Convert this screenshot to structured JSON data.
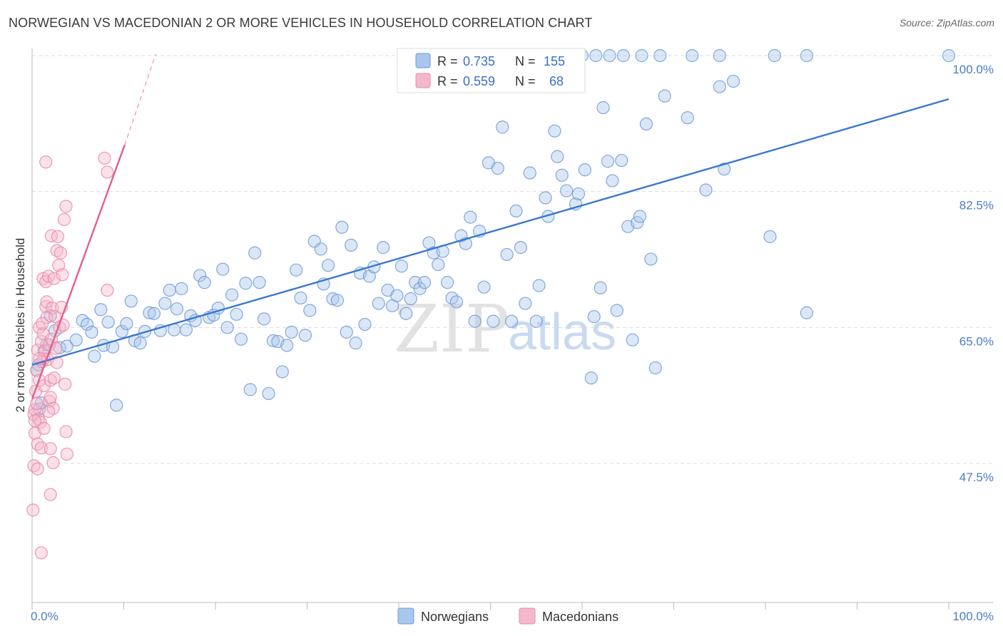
{
  "title": "NORWEGIAN VS MACEDONIAN 2 OR MORE VEHICLES IN HOUSEHOLD CORRELATION CHART",
  "source": "Source: ZipAtlas.com",
  "watermark": {
    "zip": "ZIP",
    "atlas": "atlas"
  },
  "colors": {
    "norwegian_fill": "#a9c6ec",
    "norwegian_stroke": "#6f9ad6",
    "norwegian_line": "#3a78cf",
    "macedonian_fill": "#f5b8cb",
    "macedonian_stroke": "#e68aa8",
    "macedonian_line": "#e0608e",
    "grid": "#dddddd"
  },
  "legend": {
    "rows": [
      {
        "r_label": "R = ",
        "r_value": "0.735",
        "n_label": "N = ",
        "n_value": "155"
      },
      {
        "r_label": "R = ",
        "r_value": "0.559",
        "n_label": "N = ",
        "n_value": "68"
      }
    ]
  },
  "chart_data": {
    "type": "scatter",
    "title": "NORWEGIAN VS MACEDONIAN 2 OR MORE VEHICLES IN HOUSEHOLD CORRELATION CHART",
    "xlabel": "",
    "ylabel": "2 or more Vehicles in Household",
    "xlim": [
      0,
      100
    ],
    "ylim": [
      31.8,
      103.5
    ],
    "x_tick_labels": [
      "0.0%",
      "100.0%"
    ],
    "y_ticks": [
      47.5,
      65.0,
      82.5,
      100.0
    ],
    "y_tick_labels": [
      "47.5%",
      "65.0%",
      "82.5%",
      "100.0%"
    ],
    "legend_position": "top-center",
    "series": [
      {
        "name": "Norwegians",
        "r": 0.735,
        "n": 155,
        "trend": {
          "x0": 0,
          "y0": 60.2,
          "x1": 100,
          "y1": 94.4
        },
        "points": [
          [
            0.5,
            59.5
          ],
          [
            0.7,
            60.2
          ],
          [
            0.8,
            54.5
          ],
          [
            1.0,
            55.3
          ],
          [
            1.3,
            62.0
          ],
          [
            1.6,
            62.8
          ],
          [
            2.0,
            66.5
          ],
          [
            2.5,
            64.6
          ],
          [
            3.0,
            62.4
          ],
          [
            3.8,
            62.6
          ],
          [
            4.8,
            63.4
          ],
          [
            5.5,
            65.9
          ],
          [
            6.0,
            65.4
          ],
          [
            6.5,
            64.4
          ],
          [
            6.8,
            61.3
          ],
          [
            7.5,
            67.3
          ],
          [
            7.8,
            62.7
          ],
          [
            8.3,
            65.7
          ],
          [
            8.8,
            62.5
          ],
          [
            9.2,
            55.0
          ],
          [
            9.8,
            64.5
          ],
          [
            10.3,
            65.5
          ],
          [
            10.8,
            68.4
          ],
          [
            11.2,
            63.3
          ],
          [
            11.8,
            63.0
          ],
          [
            12.3,
            64.5
          ],
          [
            12.8,
            66.9
          ],
          [
            13.3,
            66.8
          ],
          [
            14.0,
            64.6
          ],
          [
            14.5,
            68.1
          ],
          [
            15.0,
            69.8
          ],
          [
            15.5,
            64.7
          ],
          [
            15.8,
            67.4
          ],
          [
            16.3,
            70.0
          ],
          [
            16.8,
            64.7
          ],
          [
            17.3,
            66.5
          ],
          [
            17.8,
            65.9
          ],
          [
            18.3,
            71.7
          ],
          [
            18.8,
            70.8
          ],
          [
            19.3,
            66.3
          ],
          [
            19.8,
            66.6
          ],
          [
            20.3,
            67.5
          ],
          [
            20.8,
            72.5
          ],
          [
            21.3,
            65.0
          ],
          [
            21.8,
            69.2
          ],
          [
            22.3,
            66.7
          ],
          [
            22.8,
            63.5
          ],
          [
            23.3,
            70.7
          ],
          [
            23.8,
            57.0
          ],
          [
            24.3,
            74.6
          ],
          [
            24.8,
            70.8
          ],
          [
            25.3,
            66.1
          ],
          [
            25.8,
            56.5
          ],
          [
            26.3,
            63.3
          ],
          [
            26.8,
            63.2
          ],
          [
            27.3,
            59.3
          ],
          [
            27.8,
            62.7
          ],
          [
            28.3,
            64.4
          ],
          [
            28.8,
            72.4
          ],
          [
            29.3,
            68.8
          ],
          [
            29.8,
            64.0
          ],
          [
            30.3,
            67.2
          ],
          [
            30.8,
            76.1
          ],
          [
            31.5,
            75.1
          ],
          [
            31.8,
            70.6
          ],
          [
            32.3,
            73.0
          ],
          [
            32.8,
            68.7
          ],
          [
            33.3,
            68.5
          ],
          [
            33.8,
            77.9
          ],
          [
            34.3,
            64.4
          ],
          [
            34.8,
            75.6
          ],
          [
            35.3,
            63.0
          ],
          [
            35.8,
            72.0
          ],
          [
            36.3,
            65.4
          ],
          [
            36.8,
            71.6
          ],
          [
            37.3,
            72.8
          ],
          [
            37.8,
            68.1
          ],
          [
            38.3,
            75.3
          ],
          [
            38.8,
            69.8
          ],
          [
            39.3,
            67.8
          ],
          [
            39.8,
            69.1
          ],
          [
            40.3,
            72.9
          ],
          [
            40.8,
            66.8
          ],
          [
            41.3,
            68.7
          ],
          [
            41.8,
            70.8
          ],
          [
            42.3,
            70.0
          ],
          [
            42.8,
            70.8
          ],
          [
            43.3,
            75.9
          ],
          [
            43.8,
            74.6
          ],
          [
            44.3,
            73.1
          ],
          [
            44.8,
            74.8
          ],
          [
            45.3,
            70.8
          ],
          [
            45.8,
            68.8
          ],
          [
            46.3,
            68.3
          ],
          [
            46.8,
            76.8
          ],
          [
            47.3,
            75.8
          ],
          [
            47.8,
            79.2
          ],
          [
            48.3,
            65.8
          ],
          [
            48.8,
            77.4
          ],
          [
            49.3,
            70.2
          ],
          [
            49.8,
            86.2
          ],
          [
            50.3,
            65.8
          ],
          [
            50.8,
            85.5
          ],
          [
            51.3,
            90.8
          ],
          [
            51.8,
            74.4
          ],
          [
            52.3,
            65.8
          ],
          [
            52.8,
            80.0
          ],
          [
            53.3,
            75.3
          ],
          [
            53.8,
            68.1
          ],
          [
            54.3,
            84.9
          ],
          [
            55.0,
            65.8
          ],
          [
            55.3,
            70.4
          ],
          [
            56.0,
            81.7
          ],
          [
            56.3,
            79.3
          ],
          [
            57.0,
            90.3
          ],
          [
            57.3,
            87.0
          ],
          [
            57.8,
            84.6
          ],
          [
            58.3,
            82.6
          ],
          [
            59.3,
            80.9
          ],
          [
            59.6,
            82.2
          ],
          [
            60.3,
            85.3
          ],
          [
            61.0,
            58.5
          ],
          [
            61.3,
            66.4
          ],
          [
            62.0,
            70.1
          ],
          [
            62.3,
            93.3
          ],
          [
            62.8,
            86.4
          ],
          [
            63.3,
            83.9
          ],
          [
            63.8,
            67.2
          ],
          [
            64.3,
            86.5
          ],
          [
            65.0,
            78.0
          ],
          [
            65.5,
            63.4
          ],
          [
            66.0,
            78.5
          ],
          [
            66.3,
            79.3
          ],
          [
            67.0,
            91.2
          ],
          [
            67.5,
            73.8
          ],
          [
            68.0,
            59.8
          ],
          [
            69.0,
            94.8
          ],
          [
            71.5,
            92.0
          ],
          [
            73.5,
            82.7
          ],
          [
            75.0,
            96.0
          ],
          [
            75.5,
            85.4
          ],
          [
            76.5,
            96.7
          ],
          [
            80.5,
            76.7
          ],
          [
            84.5,
            66.9
          ],
          [
            60.0,
            100.0
          ],
          [
            61.5,
            100.0
          ],
          [
            63.0,
            100.0
          ],
          [
            64.5,
            100.0
          ],
          [
            66.5,
            100.0
          ],
          [
            68.5,
            100.0
          ],
          [
            72.0,
            100.0
          ],
          [
            75.0,
            100.0
          ],
          [
            81.0,
            100.0
          ],
          [
            84.5,
            100.0
          ],
          [
            100.0,
            100.0
          ]
        ]
      },
      {
        "name": "Macedonians",
        "r": 0.559,
        "n": 68,
        "trend": {
          "x0": 0,
          "y0": 55.8,
          "x1": 10.1,
          "y1": 88.5
        },
        "trend_ext": {
          "x0": 10.1,
          "y0": 88.5,
          "x1": 13.5,
          "y1": 100.2
        },
        "points": [
          [
            0.1,
            41.5
          ],
          [
            0.2,
            47.2
          ],
          [
            0.2,
            53.8
          ],
          [
            0.3,
            51.4
          ],
          [
            0.3,
            54.4
          ],
          [
            0.4,
            56.8
          ],
          [
            0.5,
            59.5
          ],
          [
            0.6,
            62.1
          ],
          [
            0.6,
            50.0
          ],
          [
            0.7,
            53.2
          ],
          [
            0.8,
            65.0
          ],
          [
            0.8,
            58.2
          ],
          [
            0.9,
            52.8
          ],
          [
            1.0,
            49.5
          ],
          [
            1.0,
            63.2
          ],
          [
            1.1,
            60.6
          ],
          [
            1.2,
            71.3
          ],
          [
            1.2,
            64.2
          ],
          [
            1.3,
            57.5
          ],
          [
            1.3,
            61.0
          ],
          [
            1.4,
            62.0
          ],
          [
            1.5,
            70.9
          ],
          [
            1.5,
            67.7
          ],
          [
            1.6,
            68.3
          ],
          [
            1.6,
            66.3
          ],
          [
            1.7,
            60.9
          ],
          [
            1.8,
            71.6
          ],
          [
            1.9,
            62.8
          ],
          [
            1.9,
            55.5
          ],
          [
            2.0,
            58.2
          ],
          [
            2.0,
            43.5
          ],
          [
            2.1,
            76.8
          ],
          [
            2.1,
            63.5
          ],
          [
            2.2,
            67.5
          ],
          [
            2.3,
            47.6
          ],
          [
            2.3,
            54.6
          ],
          [
            2.4,
            71.3
          ],
          [
            2.5,
            66.4
          ],
          [
            2.6,
            62.3
          ],
          [
            2.7,
            74.9
          ],
          [
            2.7,
            60.5
          ],
          [
            2.8,
            76.7
          ],
          [
            2.9,
            73.0
          ],
          [
            3.0,
            65.0
          ],
          [
            3.1,
            74.6
          ],
          [
            3.2,
            67.6
          ],
          [
            3.3,
            71.8
          ],
          [
            3.4,
            65.3
          ],
          [
            3.5,
            78.9
          ],
          [
            3.6,
            57.7
          ],
          [
            3.7,
            80.6
          ],
          [
            1.5,
            86.3
          ],
          [
            7.9,
            86.8
          ],
          [
            8.2,
            85.0
          ],
          [
            8.2,
            69.8
          ],
          [
            1.8,
            54.2
          ],
          [
            2.0,
            49.4
          ],
          [
            3.8,
            48.7
          ],
          [
            3.7,
            51.6
          ],
          [
            1.0,
            36.0
          ],
          [
            0.5,
            55.2
          ],
          [
            0.3,
            53.0
          ],
          [
            0.8,
            61.0
          ],
          [
            2.0,
            56.0
          ],
          [
            1.3,
            52.0
          ],
          [
            0.6,
            46.8
          ],
          [
            2.4,
            58.5
          ],
          [
            1.1,
            65.5
          ]
        ]
      }
    ]
  }
}
